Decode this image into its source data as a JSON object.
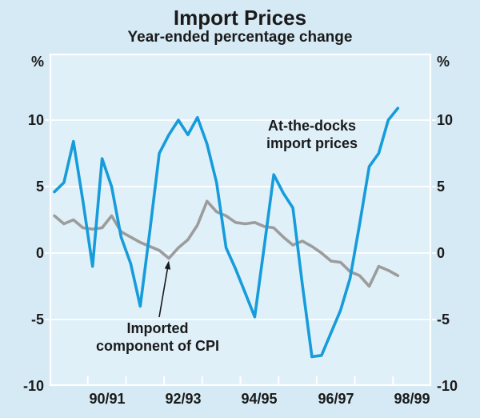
{
  "header": {
    "title": "Import Prices",
    "subtitle": "Year-ended percentage change"
  },
  "axis": {
    "unit_left": "%",
    "unit_right": "%",
    "y_ticks_left": [
      "10",
      "5",
      "0",
      "-5",
      "-10"
    ],
    "y_ticks_right": [
      "10",
      "5",
      "0",
      "-5",
      "-10"
    ],
    "x_ticks": [
      "90/91",
      "92/93",
      "94/95",
      "96/97",
      "98/99"
    ]
  },
  "annotations": {
    "docks": {
      "line1": "At-the-docks",
      "line2": "import prices"
    },
    "cpi": {
      "line1": "Imported",
      "line2": "component of CPI"
    }
  },
  "colors": {
    "background_outer": "#d6eaf5",
    "background_inner": "#dff0f9",
    "grid": "#ffffff",
    "docks_line": "#169cdb",
    "cpi_line": "#9c9c9c",
    "text": "#1a1a1a",
    "arrow": "#1a1a1a"
  },
  "chart_data": {
    "type": "line",
    "title": "Import Prices",
    "subtitle": "Year-ended percentage change",
    "unit": "%",
    "ylim": [
      -10,
      15
    ],
    "y_gridlines": [
      10,
      5,
      0,
      -5
    ],
    "y_tick_values": [
      10,
      5,
      0,
      -5,
      -10
    ],
    "x_tick_labels": [
      "90/91",
      "92/93",
      "94/95",
      "96/97",
      "98/99"
    ],
    "x_axis_note": "annual ticks at July year-boundaries, labels span financial years",
    "grid": "horizontal white gridlines on shaded panel",
    "legend_position": "in-plot text annotations",
    "x": [
      "Sep-89",
      "Dec-89",
      "Mar-90",
      "Jun-90",
      "Sep-90",
      "Dec-90",
      "Mar-91",
      "Jun-91",
      "Sep-91",
      "Dec-91",
      "Mar-92",
      "Jun-92",
      "Sep-92",
      "Dec-92",
      "Mar-93",
      "Jun-93",
      "Sep-93",
      "Dec-93",
      "Mar-94",
      "Jun-94",
      "Sep-94",
      "Dec-94",
      "Mar-95",
      "Jun-95",
      "Sep-95",
      "Dec-95",
      "Mar-96",
      "Jun-96",
      "Sep-96",
      "Dec-96",
      "Mar-97",
      "Jun-97",
      "Sep-97",
      "Dec-97",
      "Mar-98",
      "Jun-98",
      "Sep-98"
    ],
    "series": [
      {
        "name": "At-the-docks import prices",
        "color": "#169cdb",
        "values": [
          4.6,
          5.3,
          8.4,
          3.9,
          -1.0,
          7.1,
          5.0,
          1.2,
          -0.8,
          -4.0,
          1.6,
          7.5,
          8.9,
          10.0,
          8.9,
          10.2,
          8.2,
          5.3,
          0.4,
          -1.2,
          -3.0,
          -4.8,
          0.5,
          5.9,
          4.5,
          3.4,
          -2.4,
          -7.8,
          -7.7,
          -6.0,
          -4.3,
          -1.9,
          2.2,
          6.5,
          7.5,
          10.0,
          10.9
        ]
      },
      {
        "name": "Imported component of CPI",
        "color": "#9c9c9c",
        "values": [
          2.8,
          2.2,
          2.5,
          1.9,
          1.8,
          1.9,
          2.8,
          1.6,
          1.2,
          0.8,
          0.5,
          0.2,
          -0.4,
          0.4,
          1.0,
          2.1,
          3.9,
          3.1,
          2.8,
          2.3,
          2.2,
          2.3,
          2.0,
          1.9,
          1.2,
          0.6,
          0.9,
          0.5,
          0.0,
          -0.6,
          -0.7,
          -1.4,
          -1.7,
          -2.5,
          -1.0,
          -1.3,
          -1.7
        ]
      }
    ],
    "arrow_annotation": {
      "text": "Imported component of CPI",
      "points_to": {
        "x": "Sep-92",
        "value": -0.4,
        "series": "Imported component of CPI"
      }
    }
  }
}
